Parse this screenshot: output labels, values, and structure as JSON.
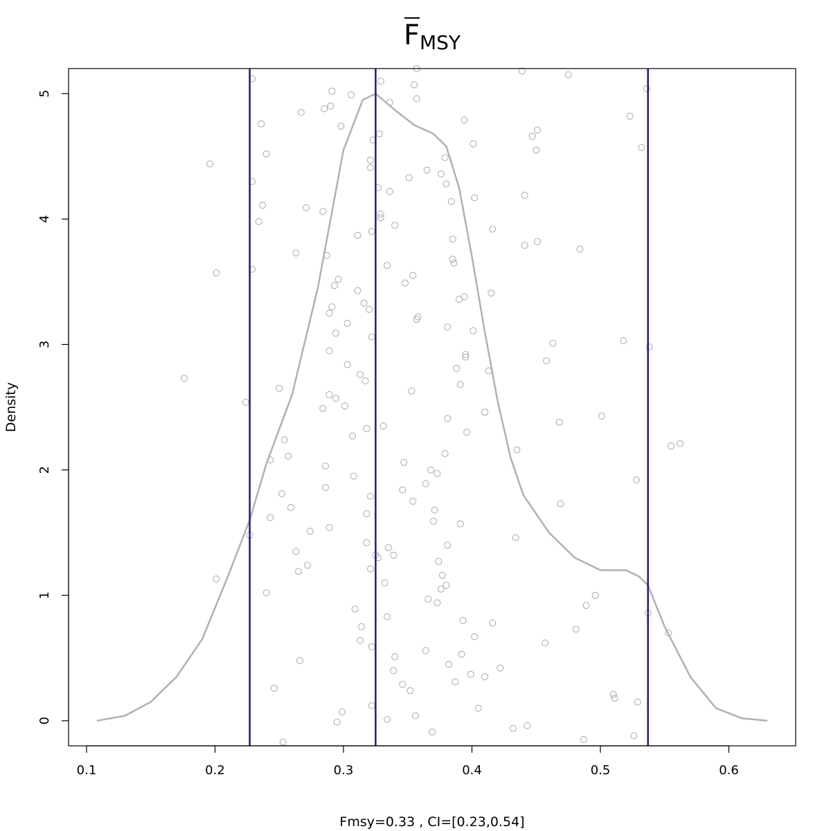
{
  "chart_data": {
    "type": "scatter",
    "title": {
      "base": "F",
      "subscript": "MSY",
      "overline": true
    },
    "xlabel": "Fmsy=0.33 , CI=[0.23,0.54]",
    "ylabel": "Density",
    "xlim": [
      0.086,
      0.652
    ],
    "ylim": [
      -0.2,
      5.2
    ],
    "x_ticks": [
      0.1,
      0.2,
      0.3,
      0.4,
      0.5,
      0.6
    ],
    "x_tick_labels": [
      "0.1",
      "0.2",
      "0.3",
      "0.4",
      "0.5",
      "0.6"
    ],
    "y_ticks": [
      0,
      1,
      2,
      3,
      4,
      5
    ],
    "y_tick_labels": [
      "0",
      "1",
      "2",
      "3",
      "4",
      "5"
    ],
    "grid": false,
    "legend": "none",
    "colors": {
      "points": "#a8a8a8",
      "density": "#b0b0b0",
      "lines": "#1b1b7a"
    },
    "vlines": [
      {
        "name": "lower-ci",
        "x": 0.227
      },
      {
        "name": "estimate",
        "x": 0.325
      },
      {
        "name": "upper-ci",
        "x": 0.537
      }
    ],
    "density": {
      "x": [
        0.108,
        0.13,
        0.15,
        0.17,
        0.19,
        0.21,
        0.227,
        0.24,
        0.26,
        0.28,
        0.3,
        0.315,
        0.325,
        0.34,
        0.355,
        0.37,
        0.38,
        0.39,
        0.4,
        0.41,
        0.42,
        0.43,
        0.44,
        0.46,
        0.48,
        0.5,
        0.51,
        0.52,
        0.53,
        0.537,
        0.55,
        0.57,
        0.59,
        0.61,
        0.63
      ],
      "y": [
        0.0,
        0.04,
        0.15,
        0.35,
        0.65,
        1.15,
        1.6,
        2.05,
        2.6,
        3.45,
        4.55,
        4.95,
        5.0,
        4.87,
        4.75,
        4.68,
        4.58,
        4.25,
        3.7,
        3.1,
        2.55,
        2.1,
        1.8,
        1.5,
        1.3,
        1.2,
        1.2,
        1.2,
        1.15,
        1.08,
        0.75,
        0.35,
        0.1,
        0.02,
        0.0
      ]
    },
    "points": [
      [
        0.176,
        2.73
      ],
      [
        0.196,
        4.44
      ],
      [
        0.201,
        3.57
      ],
      [
        0.201,
        1.13
      ],
      [
        0.224,
        2.54
      ],
      [
        0.227,
        1.48
      ],
      [
        0.229,
        5.12
      ],
      [
        0.229,
        4.3
      ],
      [
        0.229,
        3.6
      ],
      [
        0.234,
        3.98
      ],
      [
        0.236,
        4.76
      ],
      [
        0.237,
        4.11
      ],
      [
        0.24,
        4.52
      ],
      [
        0.24,
        1.02
      ],
      [
        0.243,
        1.62
      ],
      [
        0.243,
        2.08
      ],
      [
        0.246,
        0.26
      ],
      [
        0.25,
        2.65
      ],
      [
        0.252,
        1.81
      ],
      [
        0.253,
        -0.17
      ],
      [
        0.254,
        2.24
      ],
      [
        0.257,
        2.11
      ],
      [
        0.259,
        1.7
      ],
      [
        0.263,
        1.35
      ],
      [
        0.263,
        3.73
      ],
      [
        0.265,
        1.19
      ],
      [
        0.266,
        0.48
      ],
      [
        0.267,
        4.85
      ],
      [
        0.271,
        4.09
      ],
      [
        0.272,
        1.24
      ],
      [
        0.274,
        1.51
      ],
      [
        0.284,
        4.06
      ],
      [
        0.284,
        2.49
      ],
      [
        0.285,
        4.88
      ],
      [
        0.286,
        2.03
      ],
      [
        0.286,
        1.86
      ],
      [
        0.287,
        3.71
      ],
      [
        0.289,
        2.95
      ],
      [
        0.289,
        3.25
      ],
      [
        0.289,
        2.6
      ],
      [
        0.289,
        1.54
      ],
      [
        0.29,
        4.9
      ],
      [
        0.291,
        5.02
      ],
      [
        0.291,
        3.3
      ],
      [
        0.293,
        3.47
      ],
      [
        0.294,
        3.09
      ],
      [
        0.294,
        2.57
      ],
      [
        0.295,
        -0.01
      ],
      [
        0.296,
        3.52
      ],
      [
        0.298,
        4.74
      ],
      [
        0.299,
        0.07
      ],
      [
        0.301,
        2.51
      ],
      [
        0.303,
        2.84
      ],
      [
        0.303,
        3.17
      ],
      [
        0.306,
        4.99
      ],
      [
        0.307,
        2.27
      ],
      [
        0.308,
        1.95
      ],
      [
        0.309,
        0.89
      ],
      [
        0.311,
        3.43
      ],
      [
        0.311,
        3.87
      ],
      [
        0.313,
        2.76
      ],
      [
        0.313,
        0.64
      ],
      [
        0.314,
        0.75
      ],
      [
        0.316,
        3.33
      ],
      [
        0.317,
        2.71
      ],
      [
        0.318,
        1.42
      ],
      [
        0.318,
        2.33
      ],
      [
        0.318,
        1.65
      ],
      [
        0.32,
        3.28
      ],
      [
        0.321,
        4.47
      ],
      [
        0.321,
        4.41
      ],
      [
        0.321,
        1.21
      ],
      [
        0.321,
        1.79
      ],
      [
        0.322,
        0.59
      ],
      [
        0.322,
        0.12
      ],
      [
        0.322,
        3.06
      ],
      [
        0.322,
        3.9
      ],
      [
        0.323,
        4.63
      ],
      [
        0.325,
        1.32
      ],
      [
        0.327,
        1.3
      ],
      [
        0.327,
        4.25
      ],
      [
        0.328,
        4.68
      ],
      [
        0.329,
        4.04
      ],
      [
        0.329,
        4.01
      ],
      [
        0.329,
        5.1
      ],
      [
        0.331,
        2.35
      ],
      [
        0.332,
        1.1
      ],
      [
        0.334,
        3.63
      ],
      [
        0.334,
        0.83
      ],
      [
        0.334,
        0.01
      ],
      [
        0.335,
        1.38
      ],
      [
        0.336,
        4.22
      ],
      [
        0.336,
        4.93
      ],
      [
        0.339,
        1.32
      ],
      [
        0.339,
        0.4
      ],
      [
        0.34,
        0.51
      ],
      [
        0.34,
        3.95
      ],
      [
        0.346,
        1.84
      ],
      [
        0.346,
        0.29
      ],
      [
        0.347,
        2.06
      ],
      [
        0.348,
        3.49
      ],
      [
        0.351,
        4.33
      ],
      [
        0.352,
        0.24
      ],
      [
        0.353,
        2.63
      ],
      [
        0.354,
        3.55
      ],
      [
        0.354,
        1.75
      ],
      [
        0.355,
        5.07
      ],
      [
        0.356,
        0.04
      ],
      [
        0.357,
        5.2
      ],
      [
        0.357,
        4.96
      ],
      [
        0.357,
        3.2
      ],
      [
        0.358,
        3.22
      ],
      [
        0.364,
        0.56
      ],
      [
        0.364,
        1.89
      ],
      [
        0.365,
        4.39
      ],
      [
        0.366,
        0.97
      ],
      [
        0.368,
        2.0
      ],
      [
        0.369,
        -0.09
      ],
      [
        0.37,
        1.59
      ],
      [
        0.371,
        1.68
      ],
      [
        0.373,
        1.97
      ],
      [
        0.373,
        0.94
      ],
      [
        0.374,
        1.27
      ],
      [
        0.376,
        4.36
      ],
      [
        0.376,
        1.05
      ],
      [
        0.377,
        1.16
      ],
      [
        0.379,
        4.49
      ],
      [
        0.379,
        2.13
      ],
      [
        0.38,
        4.28
      ],
      [
        0.38,
        1.08
      ],
      [
        0.381,
        3.14
      ],
      [
        0.381,
        1.4
      ],
      [
        0.381,
        2.41
      ],
      [
        0.382,
        0.45
      ],
      [
        0.384,
        4.14
      ],
      [
        0.385,
        3.68
      ],
      [
        0.385,
        3.84
      ],
      [
        0.386,
        3.65
      ],
      [
        0.387,
        0.31
      ],
      [
        0.388,
        2.81
      ],
      [
        0.39,
        3.36
      ],
      [
        0.391,
        2.68
      ],
      [
        0.391,
        1.57
      ],
      [
        0.392,
        0.53
      ],
      [
        0.393,
        0.8
      ],
      [
        0.394,
        4.79
      ],
      [
        0.394,
        3.38
      ],
      [
        0.395,
        2.92
      ],
      [
        0.395,
        2.9
      ],
      [
        0.396,
        2.3
      ],
      [
        0.399,
        0.37
      ],
      [
        0.401,
        4.6
      ],
      [
        0.401,
        3.11
      ],
      [
        0.402,
        4.17
      ],
      [
        0.402,
        0.67
      ],
      [
        0.405,
        0.1
      ],
      [
        0.41,
        2.46
      ],
      [
        0.41,
        0.35
      ],
      [
        0.413,
        2.79
      ],
      [
        0.415,
        3.41
      ],
      [
        0.416,
        3.92
      ],
      [
        0.416,
        0.78
      ],
      [
        0.422,
        0.42
      ],
      [
        0.432,
        -0.06
      ],
      [
        0.434,
        1.46
      ],
      [
        0.435,
        2.16
      ],
      [
        0.439,
        5.18
      ],
      [
        0.441,
        4.19
      ],
      [
        0.441,
        3.79
      ],
      [
        0.443,
        -0.04
      ],
      [
        0.447,
        4.66
      ],
      [
        0.45,
        4.55
      ],
      [
        0.451,
        3.82
      ],
      [
        0.451,
        4.71
      ],
      [
        0.457,
        0.62
      ],
      [
        0.458,
        2.87
      ],
      [
        0.463,
        3.01
      ],
      [
        0.468,
        2.38
      ],
      [
        0.469,
        1.73
      ],
      [
        0.475,
        5.15
      ],
      [
        0.481,
        0.73
      ],
      [
        0.484,
        3.76
      ],
      [
        0.487,
        -0.15
      ],
      [
        0.489,
        0.92
      ],
      [
        0.496,
        1.0
      ],
      [
        0.501,
        2.43
      ],
      [
        0.51,
        0.21
      ],
      [
        0.511,
        0.18
      ],
      [
        0.518,
        3.03
      ],
      [
        0.523,
        4.82
      ],
      [
        0.526,
        -0.12
      ],
      [
        0.528,
        1.92
      ],
      [
        0.529,
        0.15
      ],
      [
        0.532,
        4.57
      ],
      [
        0.536,
        5.04
      ],
      [
        0.537,
        0.86
      ],
      [
        0.538,
        2.98
      ],
      [
        0.553,
        0.7
      ],
      [
        0.555,
        2.19
      ],
      [
        0.562,
        2.21
      ]
    ]
  }
}
